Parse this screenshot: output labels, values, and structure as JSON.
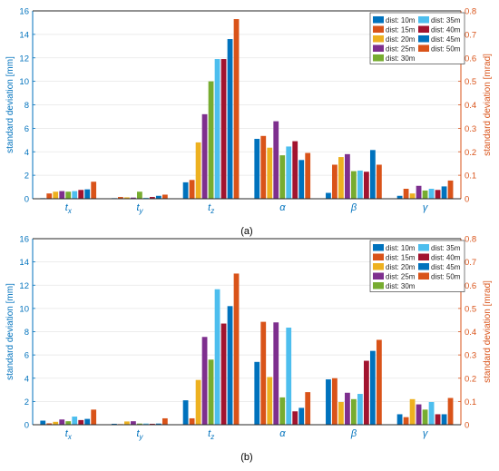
{
  "chart_data": [
    {
      "type": "bar",
      "caption": "(a)",
      "categories": [
        "t",
        "t",
        "t",
        "α",
        "β",
        "γ"
      ],
      "category_subscripts": [
        "x",
        "y",
        "z",
        "",
        "",
        ""
      ],
      "ylabel": "standard deviation [mm]",
      "ylabel_right": "standard deviation [mrad]",
      "ylim": [
        0,
        16
      ],
      "ylim_right": [
        0,
        0.8
      ],
      "yticks": [
        "0",
        "2",
        "4",
        "6",
        "8",
        "10",
        "12",
        "14",
        "16"
      ],
      "yticks_right": [
        "0",
        "0.1",
        "0.2",
        "0.3",
        "0.4",
        "0.5",
        "0.6",
        "0.7",
        "0.8"
      ],
      "grid": true,
      "legend_position": "top-right",
      "series": [
        {
          "name": "dist: 10m",
          "values": [
            0.05,
            0.05,
            1.4,
            5.1,
            0.5,
            0.25
          ]
        },
        {
          "name": "dist: 15m",
          "values": [
            0.45,
            0.15,
            1.6,
            5.35,
            2.9,
            0.85
          ]
        },
        {
          "name": "dist: 20m",
          "values": [
            0.6,
            0.12,
            4.8,
            4.35,
            3.55,
            0.45
          ]
        },
        {
          "name": "dist: 25m",
          "values": [
            0.65,
            0.1,
            7.2,
            6.6,
            3.8,
            1.1
          ]
        },
        {
          "name": "dist: 30m",
          "values": [
            0.6,
            0.6,
            10.0,
            3.7,
            2.35,
            0.7
          ]
        },
        {
          "name": "dist: 35m",
          "values": [
            0.65,
            0.08,
            11.9,
            4.45,
            2.4,
            0.85
          ]
        },
        {
          "name": "dist: 40m",
          "values": [
            0.75,
            0.15,
            11.9,
            4.9,
            2.3,
            0.75
          ]
        },
        {
          "name": "dist: 45m",
          "values": [
            0.8,
            0.25,
            13.6,
            3.3,
            4.15,
            1.05
          ]
        },
        {
          "name": "dist: 50m",
          "values": [
            1.45,
            0.35,
            15.3,
            3.9,
            2.9,
            1.55
          ]
        }
      ]
    },
    {
      "type": "bar",
      "caption": "(b)",
      "categories": [
        "t",
        "t",
        "t",
        "α",
        "β",
        "γ"
      ],
      "category_subscripts": [
        "x",
        "y",
        "z",
        "",
        "",
        ""
      ],
      "ylabel": "standard deviation [mm]",
      "ylabel_right": "standard deviation [mrad]",
      "ylim": [
        0,
        16
      ],
      "ylim_right": [
        0,
        0.8
      ],
      "yticks": [
        "0",
        "2",
        "4",
        "6",
        "8",
        "10",
        "12",
        "14",
        "16"
      ],
      "yticks_right": [
        "0",
        "0.1",
        "0.2",
        "0.3",
        "0.4",
        "0.5",
        "0.6",
        "0.7",
        "0.8"
      ],
      "grid": true,
      "legend_position": "top-right",
      "series": [
        {
          "name": "dist: 10m",
          "values": [
            0.35,
            0.08,
            2.1,
            5.4,
            3.9,
            0.9
          ]
        },
        {
          "name": "dist: 15m",
          "values": [
            0.12,
            0.05,
            0.55,
            8.85,
            4.0,
            0.65
          ]
        },
        {
          "name": "dist: 20m",
          "values": [
            0.25,
            0.28,
            3.85,
            4.1,
            1.95,
            2.2
          ]
        },
        {
          "name": "dist: 25m",
          "values": [
            0.45,
            0.3,
            7.55,
            8.8,
            2.75,
            1.75
          ]
        },
        {
          "name": "dist: 30m",
          "values": [
            0.3,
            0.1,
            5.6,
            2.35,
            2.2,
            1.3
          ]
        },
        {
          "name": "dist: 35m",
          "values": [
            0.7,
            0.1,
            11.65,
            8.35,
            2.65,
            1.95
          ]
        },
        {
          "name": "dist: 40m",
          "values": [
            0.4,
            0.08,
            8.7,
            1.15,
            5.5,
            0.9
          ]
        },
        {
          "name": "dist: 45m",
          "values": [
            0.5,
            0.1,
            10.2,
            1.45,
            6.35,
            0.9
          ]
        },
        {
          "name": "dist: 50m",
          "values": [
            1.3,
            0.55,
            13.0,
            2.8,
            7.3,
            2.3
          ]
        }
      ]
    }
  ],
  "colors": {
    "series": [
      "#0072BD",
      "#D95319",
      "#EDB120",
      "#7E2F8E",
      "#77AC30",
      "#4DBEEE",
      "#A2142F",
      "#0072BD",
      "#D95319"
    ],
    "left_axis": "#0072BD",
    "right_axis": "#D95319",
    "grid": "#e6e6e6"
  }
}
